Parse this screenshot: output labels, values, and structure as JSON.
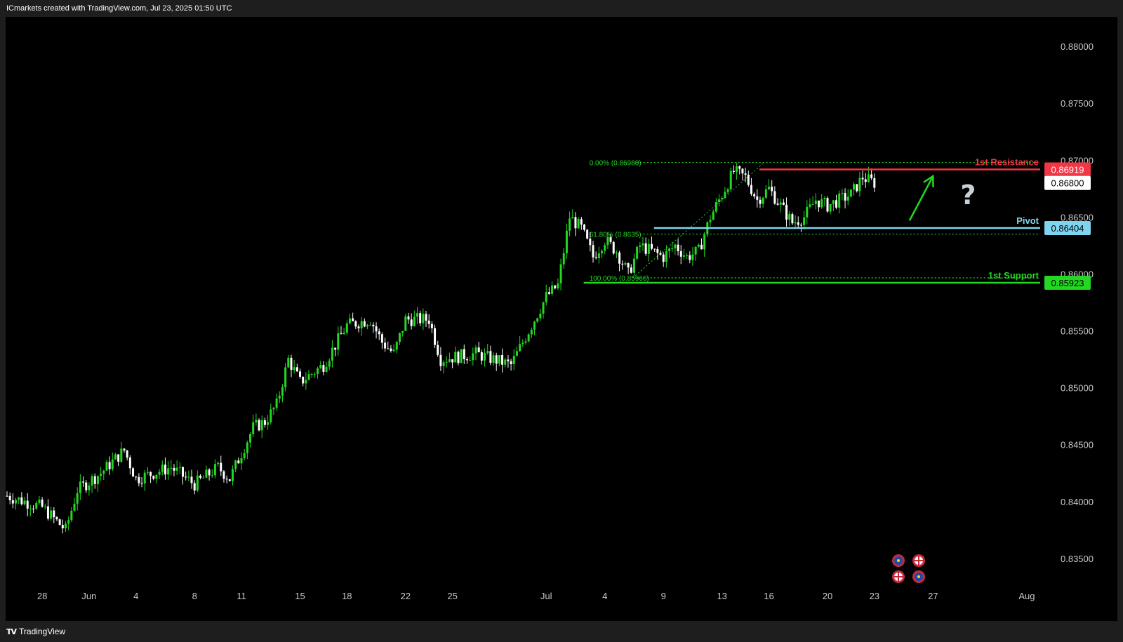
{
  "header": {
    "attribution": "ICmarkets created with TradingView.com, Jul 23, 2025 01:50 UTC"
  },
  "footer": {
    "logo_mark": "TV",
    "brand": "TradingView"
  },
  "colors": {
    "up_candle": "#22d822",
    "down_candle": "#ffffff",
    "resistance": "#f23645",
    "pivot": "#7fd4f0",
    "support": "#22d822",
    "current_price_tag": "#ffffff",
    "arrow": "#22d822",
    "question_mark": "#c8d0d8"
  },
  "chart_data": {
    "type": "candlestick",
    "symbol_context": "forex pair, daily/4h candles",
    "y_axis": {
      "min": 0.8324,
      "max": 0.8826,
      "ticks": [
        "0.88000",
        "0.87500",
        "0.87000",
        "0.86500",
        "0.86000",
        "0.85500",
        "0.85000",
        "0.84500",
        "0.84000",
        "0.83500"
      ],
      "tick_values": [
        0.88,
        0.875,
        0.87,
        0.865,
        0.86,
        0.855,
        0.85,
        0.845,
        0.84,
        0.835
      ]
    },
    "x_axis": {
      "ticks": [
        "28",
        "Jun",
        "4",
        "8",
        "11",
        "15",
        "18",
        "22",
        "25",
        "Jul",
        "4",
        "9",
        "13",
        "16",
        "20",
        "23",
        "27",
        "Aug"
      ],
      "tick_index": [
        3,
        7,
        11,
        16,
        20,
        25,
        29,
        34,
        38,
        46,
        51,
        56,
        61,
        65,
        70,
        74,
        79,
        87
      ]
    },
    "price_path": [
      {
        "i": 0,
        "p": 0.8405
      },
      {
        "i": 3,
        "p": 0.8395
      },
      {
        "i": 5,
        "p": 0.8375
      },
      {
        "i": 6,
        "p": 0.841
      },
      {
        "i": 8,
        "p": 0.8425
      },
      {
        "i": 10,
        "p": 0.8445
      },
      {
        "i": 11,
        "p": 0.842
      },
      {
        "i": 14,
        "p": 0.843
      },
      {
        "i": 16,
        "p": 0.8415
      },
      {
        "i": 18,
        "p": 0.843
      },
      {
        "i": 19,
        "p": 0.842
      },
      {
        "i": 21,
        "p": 0.8465
      },
      {
        "i": 22,
        "p": 0.847
      },
      {
        "i": 23,
        "p": 0.8485
      },
      {
        "i": 24,
        "p": 0.8525
      },
      {
        "i": 25,
        "p": 0.8505
      },
      {
        "i": 27,
        "p": 0.852
      },
      {
        "i": 29,
        "p": 0.8555
      },
      {
        "i": 31,
        "p": 0.856
      },
      {
        "i": 32,
        "p": 0.854
      },
      {
        "i": 33,
        "p": 0.853
      },
      {
        "i": 34,
        "p": 0.856
      },
      {
        "i": 36,
        "p": 0.856
      },
      {
        "i": 37,
        "p": 0.8525
      },
      {
        "i": 40,
        "p": 0.853
      },
      {
        "i": 43,
        "p": 0.852
      },
      {
        "i": 44,
        "p": 0.854
      },
      {
        "i": 45,
        "p": 0.856
      },
      {
        "i": 46,
        "p": 0.858
      },
      {
        "i": 47,
        "p": 0.859
      },
      {
        "i": 48,
        "p": 0.865
      },
      {
        "i": 49,
        "p": 0.864
      },
      {
        "i": 50,
        "p": 0.8615
      },
      {
        "i": 51,
        "p": 0.863
      },
      {
        "i": 52,
        "p": 0.862
      },
      {
        "i": 53,
        "p": 0.86
      },
      {
        "i": 54,
        "p": 0.8625
      },
      {
        "i": 55,
        "p": 0.862
      },
      {
        "i": 56,
        "p": 0.8615
      },
      {
        "i": 57,
        "p": 0.8625
      },
      {
        "i": 58,
        "p": 0.8615
      },
      {
        "i": 59,
        "p": 0.862
      },
      {
        "i": 60,
        "p": 0.865
      },
      {
        "i": 61,
        "p": 0.867
      },
      {
        "i": 62,
        "p": 0.869
      },
      {
        "i": 63,
        "p": 0.8685
      },
      {
        "i": 64,
        "p": 0.8665
      },
      {
        "i": 65,
        "p": 0.8675
      },
      {
        "i": 66,
        "p": 0.866
      },
      {
        "i": 67,
        "p": 0.8645
      },
      {
        "i": 68,
        "p": 0.865
      },
      {
        "i": 69,
        "p": 0.8665
      },
      {
        "i": 70,
        "p": 0.866
      },
      {
        "i": 71,
        "p": 0.8665
      },
      {
        "i": 72,
        "p": 0.867
      },
      {
        "i": 73,
        "p": 0.8685
      },
      {
        "i": 74,
        "p": 0.868
      }
    ],
    "last_index": 74,
    "future_bars": 14,
    "levels": [
      {
        "name": "1st Resistance",
        "value": 0.86919,
        "label": "0.86919",
        "color": "#f23645",
        "from_index": 63
      },
      {
        "name": "Pivot",
        "value": 0.86404,
        "label": "0.86404",
        "color": "#7fd4f0",
        "from_index": 54
      },
      {
        "name": "1st Support",
        "value": 0.85923,
        "label": "0.85923",
        "color": "#22d822",
        "from_index": 48
      }
    ],
    "current_price": {
      "value": 0.868,
      "label": "0.86800"
    },
    "fib": {
      "from_index": 51,
      "to_index": 64,
      "levels": [
        {
          "label": "0.00% (0.86980)",
          "value": 0.8698
        },
        {
          "label": "61.80% (0.8635)",
          "value": 0.8635
        },
        {
          "label": "100.00% (0.85966)",
          "value": 0.85966
        }
      ]
    },
    "annotations": {
      "arrow": {
        "from_index": 77,
        "from": 0.8647,
        "to_index": 79,
        "to": 0.8686
      },
      "question_mark": {
        "text": "?",
        "index": 82,
        "value": 0.867
      }
    },
    "event_icons": [
      "eu-flag-icon",
      "uk-flag-icon",
      "uk-flag-icon",
      "eu-flag-icon"
    ]
  }
}
